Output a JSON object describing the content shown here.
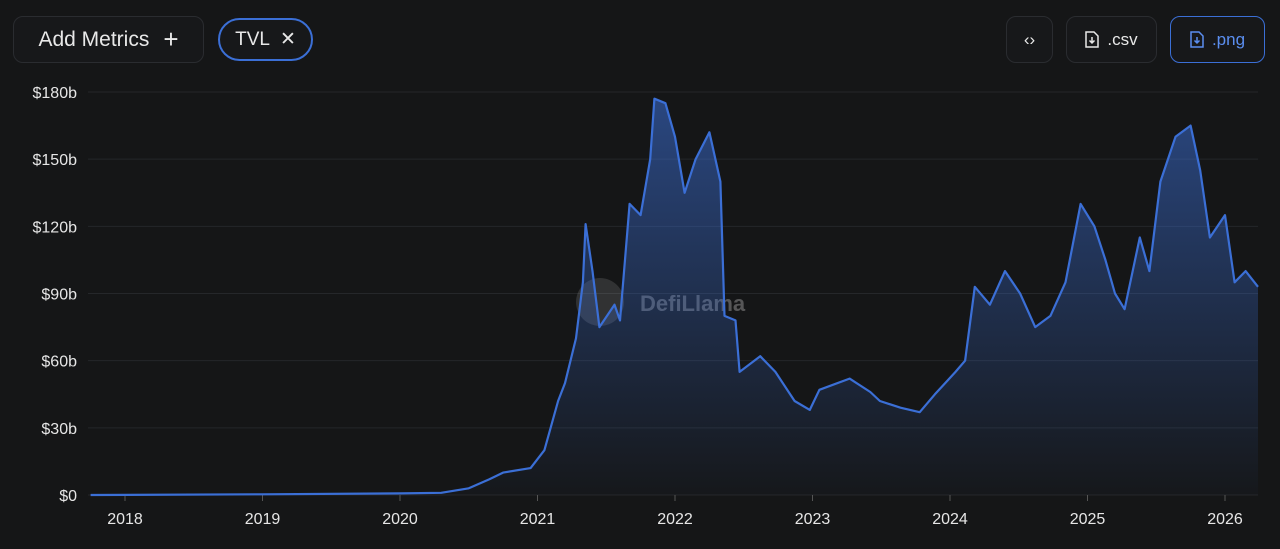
{
  "toolbar": {
    "add_metrics": "Add Metrics",
    "add_icon": "+",
    "chip_label": "TVL",
    "chip_close": "✕",
    "embed_icon": "‹›",
    "csv_label": ".csv",
    "png_label": ".png"
  },
  "watermark": "DefiLlama",
  "colors": {
    "line": "#3b6fd6",
    "accent": "#5b8ef0"
  },
  "chart_data": {
    "type": "area",
    "title": "",
    "xlabel": "",
    "ylabel": "",
    "series": [
      {
        "name": "TVL",
        "points": [
          [
            2017.75,
            0
          ],
          [
            2019.0,
            0.3
          ],
          [
            2020.0,
            0.7
          ],
          [
            2020.3,
            1
          ],
          [
            2020.5,
            3
          ],
          [
            2020.65,
            7
          ],
          [
            2020.75,
            10
          ],
          [
            2020.95,
            12
          ],
          [
            2021.05,
            20
          ],
          [
            2021.15,
            42
          ],
          [
            2021.2,
            50
          ],
          [
            2021.28,
            70
          ],
          [
            2021.33,
            95
          ],
          [
            2021.35,
            121
          ],
          [
            2021.4,
            100
          ],
          [
            2021.45,
            75
          ],
          [
            2021.56,
            85
          ],
          [
            2021.6,
            78
          ],
          [
            2021.67,
            130
          ],
          [
            2021.75,
            125
          ],
          [
            2021.82,
            150
          ],
          [
            2021.85,
            177
          ],
          [
            2021.93,
            175
          ],
          [
            2022.0,
            160
          ],
          [
            2022.07,
            135
          ],
          [
            2022.15,
            150
          ],
          [
            2022.25,
            162
          ],
          [
            2022.33,
            140
          ],
          [
            2022.36,
            80
          ],
          [
            2022.44,
            78
          ],
          [
            2022.47,
            55
          ],
          [
            2022.62,
            62
          ],
          [
            2022.73,
            55
          ],
          [
            2022.87,
            42
          ],
          [
            2022.98,
            38
          ],
          [
            2023.05,
            47
          ],
          [
            2023.27,
            52
          ],
          [
            2023.42,
            46
          ],
          [
            2023.49,
            42
          ],
          [
            2023.64,
            39
          ],
          [
            2023.78,
            37
          ],
          [
            2023.89,
            45
          ],
          [
            2024.04,
            55
          ],
          [
            2024.11,
            60
          ],
          [
            2024.18,
            93
          ],
          [
            2024.29,
            85
          ],
          [
            2024.4,
            100
          ],
          [
            2024.51,
            90
          ],
          [
            2024.62,
            75
          ],
          [
            2024.73,
            80
          ],
          [
            2024.84,
            95
          ],
          [
            2024.95,
            130
          ],
          [
            2025.05,
            120
          ],
          [
            2025.13,
            105
          ],
          [
            2025.2,
            90
          ],
          [
            2025.27,
            83
          ],
          [
            2025.38,
            115
          ],
          [
            2025.45,
            100
          ],
          [
            2025.53,
            140
          ],
          [
            2025.64,
            160
          ],
          [
            2025.75,
            165
          ],
          [
            2025.82,
            145
          ],
          [
            2025.89,
            115
          ],
          [
            2026.0,
            125
          ],
          [
            2026.07,
            95
          ],
          [
            2026.15,
            100
          ],
          [
            2026.24,
            93
          ]
        ]
      }
    ],
    "y_unit": "$b",
    "ylim": [
      0,
      180
    ],
    "yticks": [
      "$0",
      "$30b",
      "$60b",
      "$90b",
      "$120b",
      "$150b",
      "$180b"
    ],
    "xticks": [
      "2018",
      "2019",
      "2020",
      "2021",
      "2022",
      "2023",
      "2024",
      "2025",
      "2026"
    ],
    "xlim": [
      2017.75,
      2026.24
    ],
    "grid": true,
    "legend": "none"
  }
}
